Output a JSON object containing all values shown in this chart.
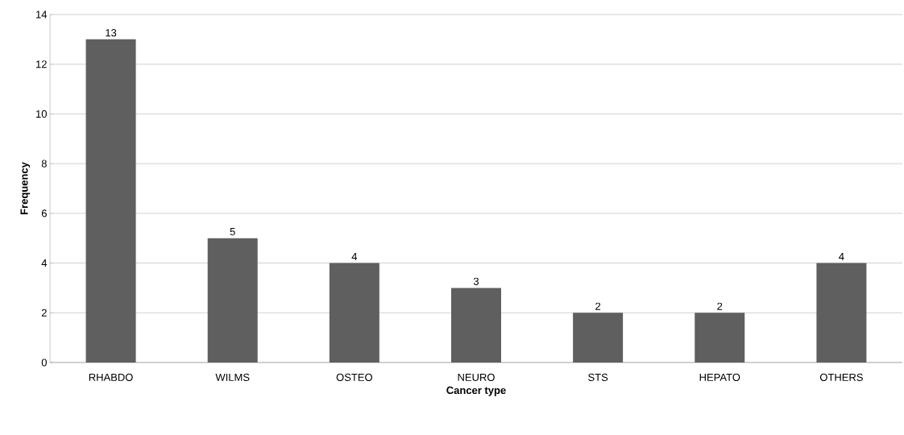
{
  "chart_data": {
    "type": "bar",
    "xlabel": "Cancer type",
    "ylabel": "Frequency",
    "categories": [
      "RHABDO",
      "WILMS",
      "OSTEO",
      "NEURO",
      "STS",
      "HEPATO",
      "OTHERS"
    ],
    "values": [
      13,
      5,
      4,
      3,
      2,
      2,
      4
    ],
    "color": "#5f5f5f",
    "ylim": [
      0,
      14
    ],
    "yticks": [
      0,
      2,
      4,
      6,
      8,
      10,
      12,
      14
    ],
    "grid": "y",
    "data_labels": true
  }
}
